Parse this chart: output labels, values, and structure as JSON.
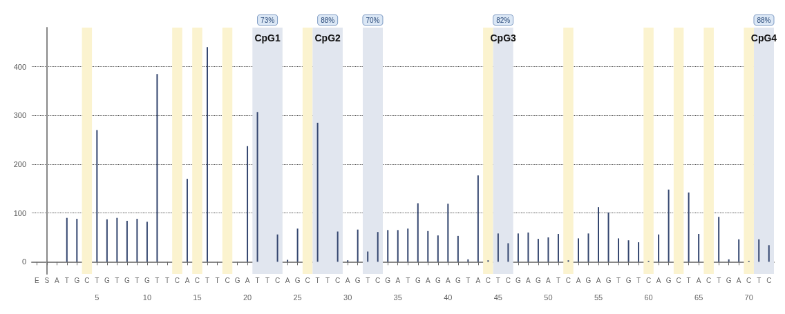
{
  "chart_data": {
    "type": "bar",
    "categories": [
      "E",
      "S",
      "A",
      "T",
      "G",
      "C",
      "T",
      "G",
      "T",
      "G",
      "T",
      "G",
      "T",
      "T",
      "C",
      "A",
      "C",
      "T",
      "T",
      "C",
      "G",
      "A",
      "T",
      "T",
      "C",
      "A",
      "G",
      "C",
      "T",
      "T",
      "C",
      "A",
      "G",
      "T",
      "C",
      "G",
      "A",
      "T",
      "G",
      "A",
      "G",
      "A",
      "G",
      "T",
      "A",
      "C",
      "T",
      "C",
      "G",
      "A",
      "G",
      "A",
      "T",
      "C",
      "A",
      "G",
      "A",
      "G",
      "T",
      "G",
      "T",
      "C",
      "A",
      "G",
      "C",
      "T",
      "A",
      "C",
      "T",
      "G",
      "A",
      "C",
      "T",
      "C"
    ],
    "values": [
      0,
      0,
      0,
      90,
      88,
      0,
      270,
      87,
      90,
      84,
      88,
      82,
      385,
      0,
      0,
      170,
      0,
      440,
      0,
      0,
      0,
      237,
      307,
      0,
      56,
      4,
      68,
      0,
      285,
      0,
      62,
      3,
      66,
      21,
      61,
      65,
      65,
      68,
      120,
      63,
      54,
      119,
      53,
      5,
      177,
      3,
      58,
      38,
      58,
      60,
      47,
      50,
      57,
      3,
      48,
      58,
      112,
      101,
      48,
      44,
      40,
      2,
      56,
      148,
      0,
      142,
      57,
      0,
      92,
      5,
      46,
      2,
      46,
      34
    ],
    "color": "#34466f",
    "ylim": [
      -25,
      480
    ],
    "yticks": [
      0,
      100,
      200,
      300,
      400
    ],
    "grid": "y",
    "x2lim": [
      -1.5,
      72.5
    ],
    "x2ticks": [
      5,
      10,
      15,
      20,
      25,
      30,
      35,
      40,
      45,
      50,
      55,
      60,
      65,
      70
    ],
    "bands": [
      {
        "axis": "x2",
        "from": 3.5,
        "to": 4.5,
        "color": "#fbf3cf"
      },
      {
        "axis": "x2",
        "from": 12.5,
        "to": 13.5,
        "color": "#fbf3cf"
      },
      {
        "axis": "x2",
        "from": 14.5,
        "to": 15.5,
        "color": "#fbf3cf"
      },
      {
        "axis": "x2",
        "from": 17.5,
        "to": 18.5,
        "color": "#fbf3cf"
      },
      {
        "axis": "x2",
        "from": 20.5,
        "to": 23.5,
        "color": "#e1e6ef",
        "label": "73%\nCpG1"
      },
      {
        "axis": "x2",
        "from": 25.5,
        "to": 26.5,
        "color": "#fbf3cf"
      },
      {
        "axis": "x2",
        "from": 26.5,
        "to": 29.5,
        "color": "#e1e6ef",
        "label": "88%\nCpG2"
      },
      {
        "axis": "x2",
        "from": 31.5,
        "to": 33.5,
        "color": "#e1e6ef",
        "label": "70%"
      },
      {
        "axis": "x2",
        "from": 43.5,
        "to": 44.5,
        "color": "#fbf3cf"
      },
      {
        "axis": "x2",
        "from": 44.5,
        "to": 46.5,
        "color": "#e1e6ef",
        "label": "82%\nCpG3"
      },
      {
        "axis": "x2",
        "from": 51.5,
        "to": 52.5,
        "color": "#fbf3cf"
      },
      {
        "axis": "x2",
        "from": 59.5,
        "to": 60.5,
        "color": "#fbf3cf"
      },
      {
        "axis": "x2",
        "from": 62.5,
        "to": 63.5,
        "color": "#fbf3cf"
      },
      {
        "axis": "x2",
        "from": 65.5,
        "to": 66.5,
        "color": "#fbf3cf"
      },
      {
        "axis": "x2",
        "from": 69.5,
        "to": 70.5,
        "color": "#fbf3cf"
      },
      {
        "axis": "x2",
        "from": 70.5,
        "to": 72.5,
        "color": "#e1e6ef",
        "label": "88%\nCpG4"
      }
    ]
  }
}
